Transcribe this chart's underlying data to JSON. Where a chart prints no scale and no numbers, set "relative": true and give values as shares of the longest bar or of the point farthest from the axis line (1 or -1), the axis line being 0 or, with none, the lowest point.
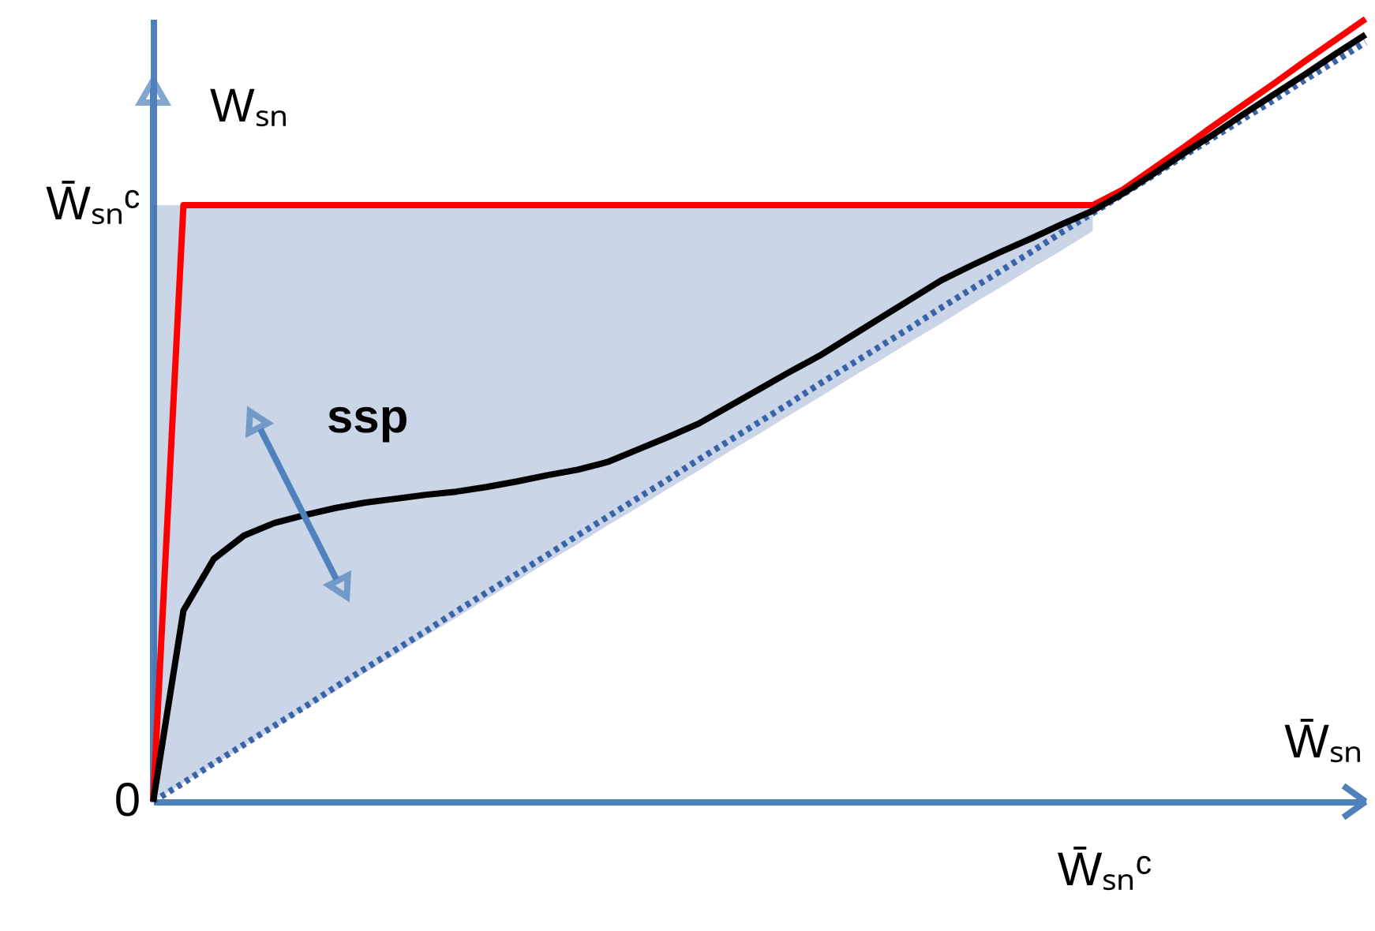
{
  "chart_data": {
    "type": "line",
    "relative": true,
    "xlabel": "W̄ₛₙ",
    "ylabel": "Wₛₙ",
    "categories": [
      null,
      null,
      null,
      null,
      null,
      null,
      null,
      null,
      null,
      null,
      null,
      null,
      null,
      null,
      null,
      null,
      null,
      null,
      null,
      null,
      null,
      null,
      null,
      null,
      null,
      null,
      null,
      null,
      null,
      null,
      null,
      null,
      null,
      null,
      null,
      null,
      null,
      null,
      null,
      null,
      null
    ],
    "annotations": [
      "0",
      "W̄ₛₙᶜ",
      "W̄ₛₙᶜ",
      "ssp"
    ],
    "grid": false,
    "marker": "none",
    "series": [
      {
        "color": "#3a64a8",
        "line_style": "dotted",
        "values": [
          0,
          0.024,
          0.049,
          0.073,
          0.097,
          0.121,
          0.146,
          0.17,
          0.194,
          0.218,
          0.243,
          0.267,
          0.291,
          0.315,
          0.34,
          0.364,
          0.388,
          0.412,
          0.437,
          0.461,
          0.485,
          0.509,
          0.534,
          0.558,
          0.582,
          0.606,
          0.631,
          0.655,
          0.679,
          0.703,
          0.728,
          0.752,
          0.776,
          0.8,
          0.825,
          0.849,
          0.873,
          0.897,
          0.922,
          0.946,
          0.97
        ],
        "lower": [
          0,
          0.024,
          0.047,
          0.071,
          0.094,
          0.118,
          0.141,
          0.165,
          0.188,
          0.212,
          0.235,
          0.259,
          0.282,
          0.306,
          0.329,
          0.353,
          0.376,
          0.4,
          0.423,
          0.447,
          0.47,
          0.494,
          0.517,
          0.541,
          0.564,
          0.588,
          0.611,
          0.635,
          0.658,
          0.682,
          0.705,
          0.729,
          null,
          null,
          null,
          null,
          null,
          null,
          null,
          null,
          null
        ],
        "upper": [
          0.762,
          0.762,
          0.762,
          0.762,
          0.762,
          0.762,
          0.762,
          0.762,
          0.762,
          0.762,
          0.762,
          0.762,
          0.762,
          0.762,
          0.762,
          0.762,
          0.762,
          0.762,
          0.762,
          0.762,
          0.762,
          0.762,
          0.762,
          0.762,
          0.762,
          0.762,
          0.762,
          0.762,
          0.762,
          0.762,
          0.762,
          0.762,
          null,
          null,
          null,
          null,
          null,
          null,
          null,
          null,
          null
        ]
      },
      {
        "color": "#ff0000",
        "line_style": "solid",
        "values": [
          0,
          0.762,
          0.762,
          0.762,
          0.762,
          0.762,
          0.762,
          0.762,
          0.762,
          0.762,
          0.762,
          0.762,
          0.762,
          0.762,
          0.762,
          0.762,
          0.762,
          0.762,
          0.762,
          0.762,
          0.762,
          0.762,
          0.762,
          0.762,
          0.762,
          0.762,
          0.762,
          0.762,
          0.762,
          0.762,
          0.762,
          0.762,
          0.782,
          0.809,
          0.836,
          0.864,
          0.891,
          0.918,
          0.946,
          0.973,
          1.0
        ]
      },
      {
        "color": "#000000",
        "line_style": "solid",
        "values": [
          0,
          0.244,
          0.31,
          0.34,
          0.356,
          0.366,
          0.375,
          0.382,
          0.387,
          0.392,
          0.396,
          0.402,
          0.409,
          0.417,
          0.424,
          0.434,
          0.45,
          0.466,
          0.483,
          0.505,
          0.527,
          0.549,
          0.57,
          0.594,
          0.618,
          0.642,
          0.666,
          0.685,
          0.703,
          0.72,
          0.738,
          0.755,
          0.777,
          0.802,
          0.828,
          0.853,
          0.879,
          0.904,
          0.929,
          0.955,
          0.98
        ]
      }
    ]
  }
}
